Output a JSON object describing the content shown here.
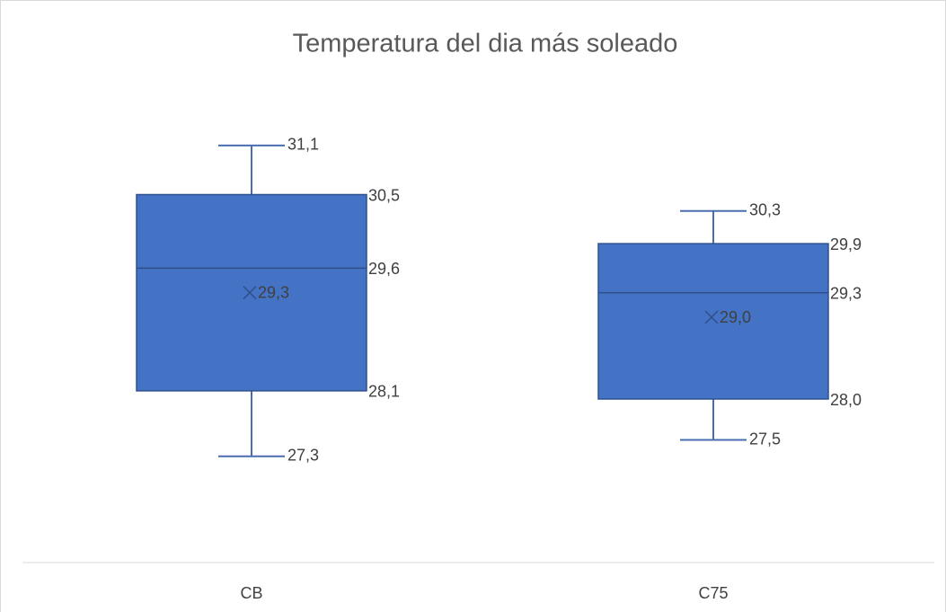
{
  "chart_data": {
    "type": "box",
    "title": "Temperatura del dia más soleado",
    "categories": [
      "CB",
      "C75"
    ],
    "color": "#4472c4",
    "ylim": [
      26,
      32
    ],
    "boxes": [
      {
        "values": {
          "min": 27.3,
          "q1": 28.1,
          "median": 29.6,
          "q3": 30.5,
          "max": 31.1,
          "mean": 29.3
        },
        "value_labels": {
          "min": "27,3",
          "q1": "28,1",
          "median": "29,6",
          "q3": "30,5",
          "max": "31,1",
          "mean": "29,3"
        }
      },
      {
        "values": {
          "min": 27.5,
          "q1": 28.0,
          "median": 29.3,
          "q3": 29.9,
          "max": 30.3,
          "mean": 29.0
        },
        "value_labels": {
          "min": "27,5",
          "q1": "28,0",
          "median": "29,3",
          "q3": "29,9",
          "max": "30,3",
          "mean": "29,0"
        }
      }
    ]
  }
}
